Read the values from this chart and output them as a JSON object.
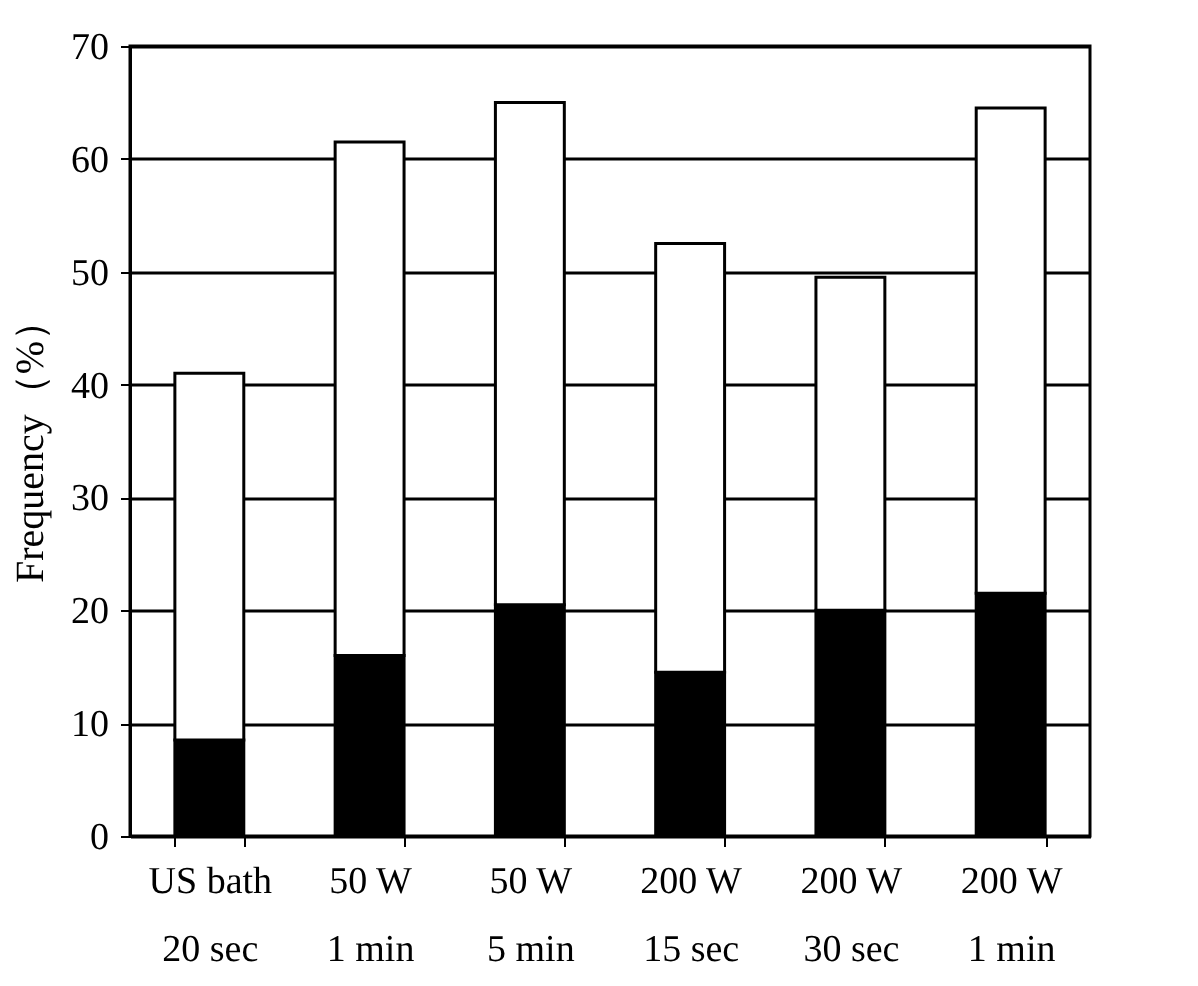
{
  "chart_data": {
    "type": "bar",
    "ylabel": "Frequency（%）",
    "categories": [
      "US bath\n20 sec",
      "50 W\n1 min",
      "50 W\n5 min",
      "200 W\n15 sec",
      "200 W\n30 sec",
      "200 W\n1 min"
    ],
    "stacked": true,
    "series": [
      {
        "color": "#000000",
        "values": [
          8.5,
          16,
          20.5,
          14.5,
          20,
          21.5
        ]
      },
      {
        "color": "#ffffff",
        "values": [
          32.5,
          45.5,
          44.5,
          38,
          29.5,
          43
        ]
      }
    ],
    "ylim": [
      0,
      70
    ],
    "yticks": [
      0,
      10,
      20,
      30,
      40,
      50,
      60,
      70
    ],
    "grid": "y",
    "legend": false
  }
}
